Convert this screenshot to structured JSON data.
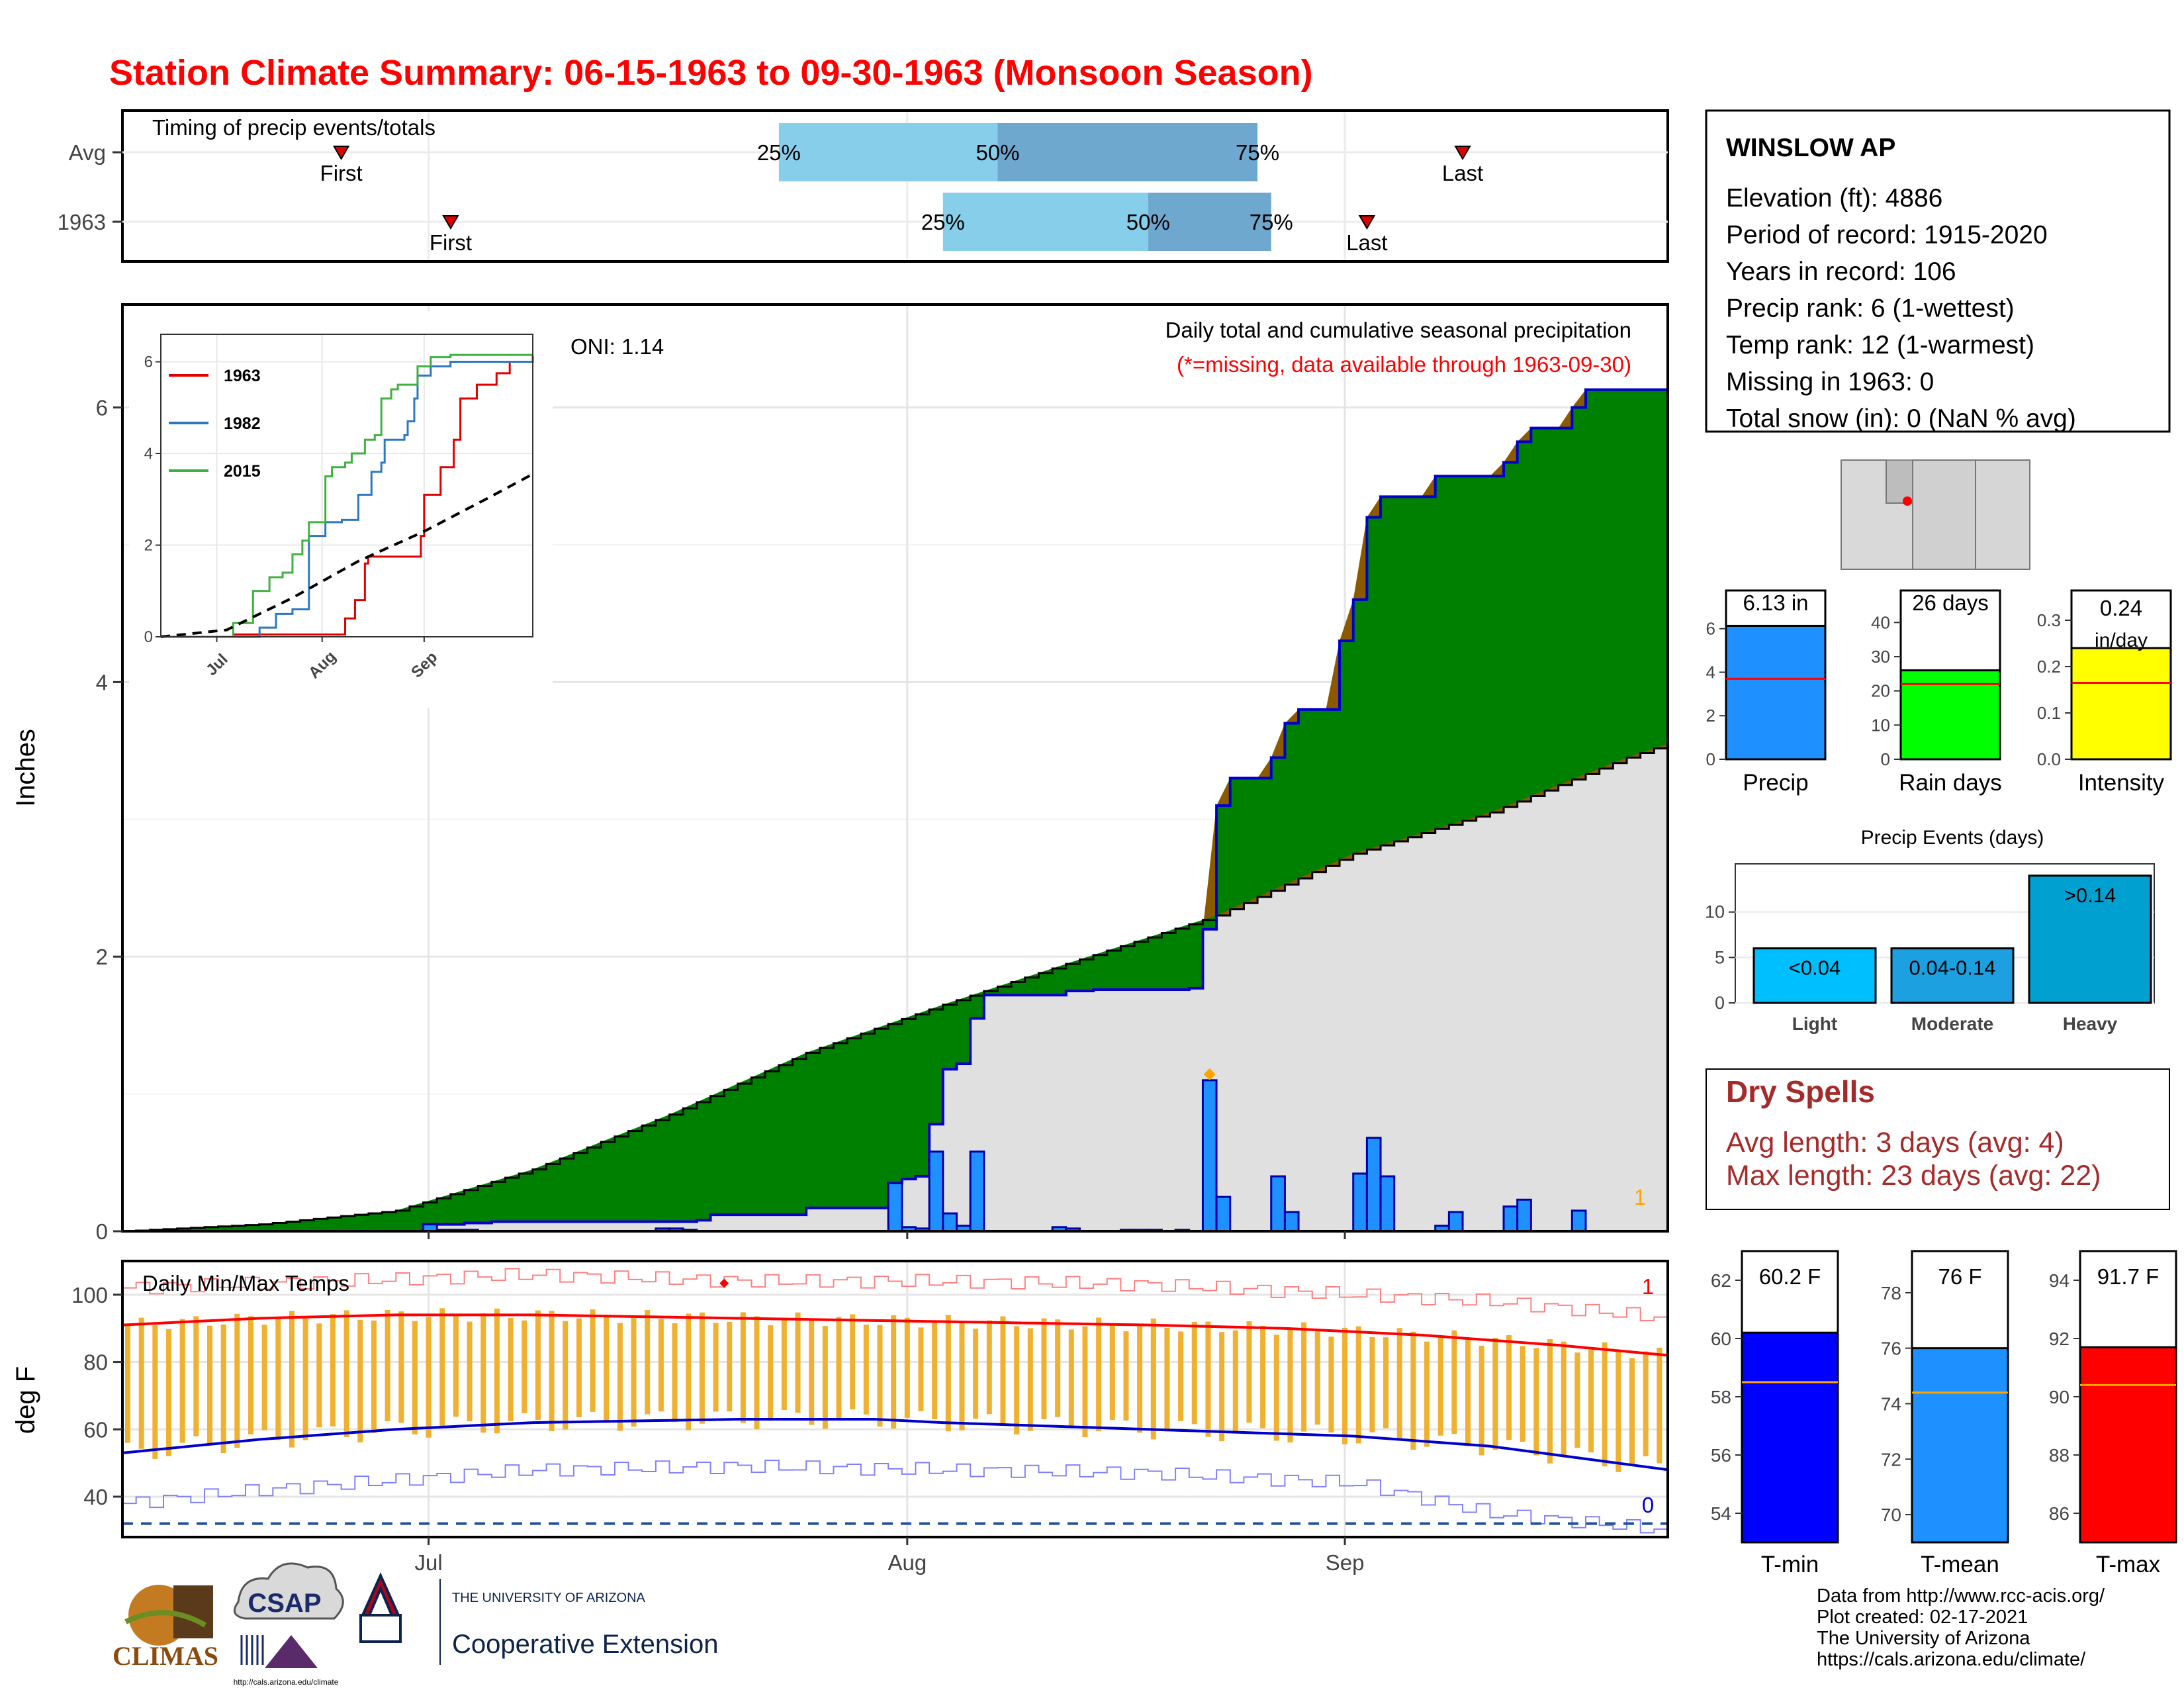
{
  "title": "Station Climate Summary: 06-15-1963 to 09-30-1963 (Monsoon Season)",
  "colors": {
    "title": "#ff0000",
    "cum_fill": "#008000",
    "avg_fill": "#e0e0e0",
    "deficit_fill": "#8b5a00",
    "bar_blue": "#1e90ff",
    "tmax": "#ff0000",
    "tmin": "#0000cc",
    "range_bar": "#f0b030",
    "timing_light": "#87ceeb",
    "timing_dark": "#6fa8cf",
    "precip_box": "#1e90ff",
    "raindays_box": "#00ff00",
    "intensity_box": "#ffff00",
    "events_bar": "#00a0d0",
    "dry_spell_text": "#a52a2a",
    "tmean_box": "#1e90ff",
    "tmin_box": "#0000ff",
    "tmax_box": "#ff0000"
  },
  "timing": {
    "label": "Timing of precip events/totals",
    "rows": [
      {
        "name": "Avg",
        "first_day": 16,
        "q25_day": 48,
        "q50_day": 64,
        "q75_day": 83,
        "last_day": 98,
        "first_label": "First",
        "last_label": "Last",
        "q25_label": "25%",
        "q50_label": "50%",
        "q75_label": "75%"
      },
      {
        "name": "1963",
        "first_day": 24,
        "q25_day": 60,
        "q50_day": 75,
        "q75_day": 84,
        "last_day": 91,
        "first_label": "First",
        "last_label": "Last",
        "q25_label": "25%",
        "q50_label": "50%",
        "q75_label": "75%"
      }
    ]
  },
  "main_chart": {
    "ylabel": "Inches",
    "oni": "ONI: 1.14",
    "caption1": "Daily total and cumulative seasonal precipitation",
    "caption2": "(*=missing, data available through 1963-09-30)",
    "corner_count": "1",
    "yticks": [
      0,
      2,
      4,
      6
    ]
  },
  "inset": {
    "yticks": [
      "0",
      "2",
      "4",
      "6"
    ],
    "xticks": [
      "Jul",
      "Aug",
      "Sep"
    ],
    "legend": [
      "1963",
      "1982",
      "2015"
    ]
  },
  "temp_chart": {
    "label": "Daily Min/Max Temps",
    "ylabel": "deg F",
    "yticks": [
      40,
      60,
      80,
      100
    ],
    "count_hi": "1",
    "count_lo": "0"
  },
  "xaxis": {
    "ticks": [
      "Jul",
      "Aug",
      "Sep"
    ]
  },
  "station": {
    "name": "WINSLOW AP",
    "lines": [
      "Elevation (ft): 4886",
      "Period of record: 1915-2020",
      "Years in record: 106",
      "Precip rank: 6 (1-wettest)",
      "Temp rank: 12 (1-warmest)",
      "Missing in 1963: 0",
      "Total snow (in): 0 (NaN % avg)"
    ]
  },
  "summary_bars": [
    {
      "label": "Precip",
      "value": 6.13,
      "avg": 3.7,
      "ymax": 6.6,
      "ticks": [
        "0",
        "2",
        "4",
        "6"
      ],
      "tickvals": [
        0,
        2,
        4,
        6
      ],
      "text": "6.13 in",
      "text2": ""
    },
    {
      "label": "Rain days",
      "value": 26,
      "avg": 22,
      "ymax": 42,
      "ticks": [
        "0",
        "10",
        "20",
        "30",
        "40"
      ],
      "tickvals": [
        0,
        10,
        20,
        30,
        40
      ],
      "text": "26 days",
      "text2": ""
    },
    {
      "label": "Intensity",
      "value": 0.24,
      "avg": 0.165,
      "ymax": 0.31,
      "ticks": [
        "0.0",
        "0.1",
        "0.2",
        "0.3"
      ],
      "tickvals": [
        0,
        0.1,
        0.2,
        0.3
      ],
      "text": "0.24",
      "text2": "in/day"
    }
  ],
  "events": {
    "title": "Precip Events (days)",
    "categories": [
      "Light",
      "Moderate",
      "Heavy"
    ],
    "labels": [
      "<0.04",
      "0.04-0.14",
      ">0.14"
    ],
    "values": [
      6,
      6,
      14
    ],
    "yticks": [
      0,
      5,
      10
    ]
  },
  "dry_spells": {
    "title": "Dry Spells",
    "line1": "Avg length: 3 days (avg: 4)",
    "line2": "Max length: 23 days (avg: 22)"
  },
  "temp_bars": [
    {
      "label": "T-min",
      "value": 60.2,
      "avg": 58.5,
      "ymin": 53,
      "ymax": 63,
      "tickvals": [
        54,
        56,
        58,
        60,
        62
      ],
      "text": "60.2 F"
    },
    {
      "label": "T-mean",
      "value": 76,
      "avg": 74.4,
      "ymin": 69,
      "ymax": 79.5,
      "tickvals": [
        70,
        72,
        74,
        76,
        78
      ],
      "text": "76 F"
    },
    {
      "label": "T-max",
      "value": 91.7,
      "avg": 90.4,
      "ymin": 85,
      "ymax": 95,
      "tickvals": [
        86,
        88,
        90,
        92,
        94
      ],
      "text": "91.7 F"
    }
  ],
  "footer": {
    "lines": [
      "Data from http://www.rcc-acis.org/",
      "Plot created: 02-17-2021",
      "The University of Arizona",
      "https://cals.arizona.edu/climate/"
    ],
    "logo1": "CLIMAS",
    "logo2": "CSAP",
    "logo2_url": "http://cals.arizona.edu/climate",
    "logo3_top": "THE UNIVERSITY OF ARIZONA",
    "logo3_bottom": "Cooperative Extension"
  },
  "chart_data": {
    "type": "area",
    "title": "Daily total and cumulative seasonal precipitation",
    "ylabel": "Inches",
    "ylim": [
      0,
      6.7
    ],
    "x_start": "1963-06-15",
    "x_end": "1963-09-30",
    "cumulative_1963_steps": [
      [
        0,
        0
      ],
      [
        22,
        0.05
      ],
      [
        25,
        0.06
      ],
      [
        27,
        0.07
      ],
      [
        39,
        0.07
      ],
      [
        42,
        0.08
      ],
      [
        43,
        0.12
      ],
      [
        48,
        0.12
      ],
      [
        50,
        0.17
      ],
      [
        56,
        0.35
      ],
      [
        57,
        0.38
      ],
      [
        58,
        0.4
      ],
      [
        59,
        0.78
      ],
      [
        60,
        1.18
      ],
      [
        61,
        1.22
      ],
      [
        62,
        1.55
      ],
      [
        63,
        1.72
      ],
      [
        69,
        1.75
      ],
      [
        71,
        1.76
      ],
      [
        78,
        1.77
      ],
      [
        79,
        2.2
      ],
      [
        80,
        3.1
      ],
      [
        81,
        3.3
      ],
      [
        82,
        3.3
      ],
      [
        84,
        3.45
      ],
      [
        85,
        3.7
      ],
      [
        86,
        3.8
      ],
      [
        87,
        3.8
      ],
      [
        89,
        4.3
      ],
      [
        90,
        4.6
      ],
      [
        91,
        5.2
      ],
      [
        92,
        5.35
      ],
      [
        95,
        5.35
      ],
      [
        96,
        5.5
      ],
      [
        97,
        5.5
      ],
      [
        101,
        5.6
      ],
      [
        102,
        5.75
      ],
      [
        103,
        5.85
      ],
      [
        106,
        6.0
      ],
      [
        107,
        6.13
      ],
      [
        113,
        6.13
      ]
    ],
    "daily_1963": [
      [
        22,
        0.05
      ],
      [
        23,
        0.01
      ],
      [
        24,
        0.01
      ],
      [
        25,
        0.01
      ],
      [
        39,
        0.02
      ],
      [
        40,
        0.02
      ],
      [
        41,
        0.01
      ],
      [
        56,
        0.35
      ],
      [
        57,
        0.03
      ],
      [
        58,
        0.02
      ],
      [
        59,
        0.58
      ],
      [
        60,
        0.13
      ],
      [
        61,
        0.04
      ],
      [
        62,
        0.58
      ],
      [
        68,
        0.03
      ],
      [
        69,
        0.02
      ],
      [
        73,
        0.01
      ],
      [
        74,
        0.01
      ],
      [
        75,
        0.01
      ],
      [
        77,
        0.01
      ],
      [
        79,
        1.1
      ],
      [
        80,
        0.25
      ],
      [
        84,
        0.4
      ],
      [
        85,
        0.14
      ],
      [
        90,
        0.42
      ],
      [
        91,
        0.68
      ],
      [
        92,
        0.4
      ],
      [
        96,
        0.04
      ],
      [
        97,
        0.14
      ],
      [
        101,
        0.18
      ],
      [
        102,
        0.23
      ],
      [
        106,
        0.15
      ]
    ],
    "average_cumulative": [
      [
        0,
        0
      ],
      [
        10,
        0.05
      ],
      [
        20,
        0.15
      ],
      [
        30,
        0.45
      ],
      [
        40,
        0.85
      ],
      [
        50,
        1.3
      ],
      [
        60,
        1.65
      ],
      [
        70,
        1.98
      ],
      [
        80,
        2.3
      ],
      [
        90,
        2.75
      ],
      [
        100,
        3.05
      ],
      [
        110,
        3.45
      ],
      [
        113,
        3.55
      ]
    ],
    "inset": {
      "series": [
        {
          "name": "1963",
          "values": [
            [
              0,
              0
            ],
            [
              22,
              0.05
            ],
            [
              56,
              0.4
            ],
            [
              59,
              0.8
            ],
            [
              62,
              1.6
            ],
            [
              63,
              1.75
            ],
            [
              79,
              2.2
            ],
            [
              80,
              3.1
            ],
            [
              85,
              3.7
            ],
            [
              89,
              4.3
            ],
            [
              91,
              5.2
            ],
            [
              96,
              5.5
            ],
            [
              102,
              5.75
            ],
            [
              106,
              6.0
            ],
            [
              113,
              6.13
            ]
          ]
        },
        {
          "name": "1982",
          "values": [
            [
              0,
              0
            ],
            [
              15,
              0
            ],
            [
              30,
              0.2
            ],
            [
              35,
              0.5
            ],
            [
              40,
              0.6
            ],
            [
              45,
              2.2
            ],
            [
              50,
              2.5
            ],
            [
              55,
              2.55
            ],
            [
              60,
              3.1
            ],
            [
              64,
              3.6
            ],
            [
              67,
              3.8
            ],
            [
              68,
              4.3
            ],
            [
              74,
              4.4
            ],
            [
              75,
              4.7
            ],
            [
              77,
              5.2
            ],
            [
              78,
              5.7
            ],
            [
              82,
              5.9
            ],
            [
              88,
              6.0
            ],
            [
              113,
              6.0
            ]
          ]
        },
        {
          "name": "2015",
          "values": [
            [
              0,
              0
            ],
            [
              22,
              0.3
            ],
            [
              28,
              1.0
            ],
            [
              33,
              1.3
            ],
            [
              37,
              1.4
            ],
            [
              40,
              1.8
            ],
            [
              43,
              2.1
            ],
            [
              45,
              2.5
            ],
            [
              50,
              3.5
            ],
            [
              52,
              3.7
            ],
            [
              56,
              3.8
            ],
            [
              58,
              4.0
            ],
            [
              62,
              4.3
            ],
            [
              65,
              4.4
            ],
            [
              67,
              5.2
            ],
            [
              70,
              5.4
            ],
            [
              72,
              5.5
            ],
            [
              78,
              5.9
            ],
            [
              82,
              6.1
            ],
            [
              88,
              6.15
            ],
            [
              113,
              6.15
            ]
          ]
        },
        {
          "name": "avg",
          "values": [
            [
              0,
              0
            ],
            [
              20,
              0.15
            ],
            [
              40,
              0.85
            ],
            [
              60,
              1.65
            ],
            [
              80,
              2.3
            ],
            [
              100,
              3.05
            ],
            [
              113,
              3.55
            ]
          ]
        }
      ]
    },
    "temperature": {
      "ylim": [
        28,
        110
      ],
      "avg_tmax": [
        [
          0,
          91
        ],
        [
          10,
          93
        ],
        [
          20,
          94
        ],
        [
          30,
          94
        ],
        [
          45,
          93
        ],
        [
          60,
          92
        ],
        [
          75,
          91
        ],
        [
          85,
          90
        ],
        [
          95,
          88
        ],
        [
          105,
          85
        ],
        [
          113,
          82
        ]
      ],
      "avg_tmin": [
        [
          0,
          53
        ],
        [
          10,
          57
        ],
        [
          20,
          60
        ],
        [
          30,
          62
        ],
        [
          45,
          63
        ],
        [
          55,
          63
        ],
        [
          60,
          62
        ],
        [
          75,
          60
        ],
        [
          90,
          58
        ],
        [
          100,
          55
        ],
        [
          113,
          48
        ]
      ],
      "record_high": [
        [
          0,
          102
        ],
        [
          15,
          104
        ],
        [
          30,
          106
        ],
        [
          45,
          104
        ],
        [
          60,
          104
        ],
        [
          75,
          103
        ],
        [
          90,
          100
        ],
        [
          100,
          98
        ],
        [
          113,
          93
        ]
      ],
      "record_low": [
        [
          0,
          38
        ],
        [
          10,
          42
        ],
        [
          20,
          45
        ],
        [
          30,
          48
        ],
        [
          45,
          49
        ],
        [
          60,
          48
        ],
        [
          75,
          47
        ],
        [
          90,
          44
        ],
        [
          100,
          35
        ],
        [
          113,
          30
        ]
      ],
      "freeze_line": 32
    }
  }
}
